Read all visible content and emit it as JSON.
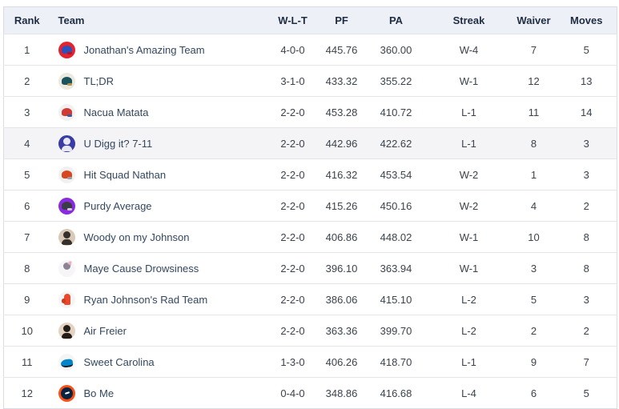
{
  "colors": {
    "header_bg": "#edf1f7",
    "header_text": "#1f2c42",
    "row_border": "#e3e5e9",
    "outer_border": "#d9dce1",
    "cell_text": "#3c434c",
    "team_name_text": "#33475f",
    "highlight_row_bg": "#f4f4f6"
  },
  "table": {
    "columns": [
      {
        "label": "Rank"
      },
      {
        "label": "Team"
      },
      {
        "label": "W-L-T"
      },
      {
        "label": "PF"
      },
      {
        "label": "PA"
      },
      {
        "label": "Streak"
      },
      {
        "label": "Waiver"
      },
      {
        "label": "Moves"
      }
    ],
    "rows": [
      {
        "rank": "1",
        "team": "Jonathan's Amazing Team",
        "wlt": "4-0-0",
        "pf": "445.76",
        "pa": "360.00",
        "streak": "W-4",
        "waiver": "7",
        "moves": "5",
        "highlight": false,
        "icon": {
          "name": "red-blue-helmet-icon",
          "type": "helmet",
          "bg": "#e5232e",
          "fg": "#2a52be",
          "accent": "#c01020"
        }
      },
      {
        "rank": "2",
        "team": "TL;DR",
        "wlt": "3-1-0",
        "pf": "433.32",
        "pa": "355.22",
        "streak": "W-1",
        "waiver": "12",
        "moves": "13",
        "highlight": false,
        "icon": {
          "name": "jaguar-helmet-icon",
          "type": "helmet",
          "bg": "#ece9e0",
          "fg": "#1b535c",
          "accent": "#b79549"
        }
      },
      {
        "rank": "3",
        "team": "Nacua Matata",
        "wlt": "2-2-0",
        "pf": "453.28",
        "pa": "410.72",
        "streak": "L-1",
        "waiver": "11",
        "moves": "14",
        "highlight": false,
        "icon": {
          "name": "red-white-helmet-icon",
          "type": "helmet",
          "bg": "#f1f1f1",
          "fg": "#d03a32",
          "accent": "#3b5aa0"
        }
      },
      {
        "rank": "4",
        "team": "U Digg it? 7-11",
        "wlt": "2-2-0",
        "pf": "442.96",
        "pa": "422.62",
        "streak": "L-1",
        "waiver": "8",
        "moves": "3",
        "highlight": true,
        "icon": {
          "name": "vikings-player-icon",
          "type": "person",
          "bg": "#3b3ba6",
          "fg": "#e8e8f2",
          "accent": "#ffffff"
        }
      },
      {
        "rank": "5",
        "team": "Hit Squad Nathan",
        "wlt": "2-2-0",
        "pf": "416.32",
        "pa": "453.54",
        "streak": "W-2",
        "waiver": "1",
        "moves": "3",
        "highlight": false,
        "icon": {
          "name": "orange-helmet-icon",
          "type": "helmet",
          "bg": "#f1f1f1",
          "fg": "#d8471f",
          "accent": "#9aa0a6"
        }
      },
      {
        "rank": "6",
        "team": "Purdy Average",
        "wlt": "2-2-0",
        "pf": "415.26",
        "pa": "450.16",
        "streak": "W-2",
        "waiver": "4",
        "moves": "2",
        "highlight": false,
        "icon": {
          "name": "purple-helmet-icon",
          "type": "helmet",
          "bg": "#8a2be2",
          "fg": "#3c3c46",
          "accent": "#cfcfd6"
        }
      },
      {
        "rank": "7",
        "team": "Woody on my Johnson",
        "wlt": "2-2-0",
        "pf": "406.86",
        "pa": "448.02",
        "streak": "W-1",
        "waiver": "10",
        "moves": "8",
        "highlight": false,
        "icon": {
          "name": "manager-photo-icon",
          "type": "person",
          "bg": "#d9c9b6",
          "fg": "#35302b",
          "accent": "#ffffff"
        }
      },
      {
        "rank": "8",
        "team": "Maye Cause Drowsiness",
        "wlt": "2-2-0",
        "pf": "396.10",
        "pa": "363.94",
        "streak": "W-1",
        "waiver": "3",
        "moves": "8",
        "highlight": false,
        "icon": {
          "name": "unicorn-icon",
          "type": "unicorn",
          "bg": "#f7f5f7",
          "fg": "#8a8494",
          "accent": "#e9b6c4"
        }
      },
      {
        "rank": "9",
        "team": "Ryan Johnson's Rad Team",
        "wlt": "2-2-0",
        "pf": "386.06",
        "pa": "415.10",
        "streak": "L-2",
        "waiver": "5",
        "moves": "3",
        "highlight": false,
        "icon": {
          "name": "foam-finger-icon",
          "type": "finger",
          "bg": "#f5f5f5",
          "fg": "#e8492b",
          "accent": "#d13a1e"
        }
      },
      {
        "rank": "10",
        "team": "Air Freier",
        "wlt": "2-2-0",
        "pf": "363.36",
        "pa": "399.70",
        "streak": "L-2",
        "waiver": "2",
        "moves": "2",
        "highlight": false,
        "icon": {
          "name": "manager-photo-icon",
          "type": "person",
          "bg": "#e3d3c3",
          "fg": "#221b18",
          "accent": "#ffffff"
        }
      },
      {
        "rank": "11",
        "team": "Sweet Carolina",
        "wlt": "1-3-0",
        "pf": "406.26",
        "pa": "418.70",
        "streak": "L-1",
        "waiver": "9",
        "moves": "7",
        "highlight": false,
        "icon": {
          "name": "panther-logo-icon",
          "type": "panther",
          "bg": "#f5f5f5",
          "fg": "#0085ca",
          "accent": "#101820"
        }
      },
      {
        "rank": "12",
        "team": "Bo Me",
        "wlt": "0-4-0",
        "pf": "348.86",
        "pa": "416.68",
        "streak": "L-4",
        "waiver": "6",
        "moves": "5",
        "highlight": false,
        "icon": {
          "name": "broncos-logo-icon",
          "type": "horse",
          "bg": "#fb4f14",
          "fg": "#0a2343",
          "accent": "#ffffff"
        }
      }
    ]
  }
}
